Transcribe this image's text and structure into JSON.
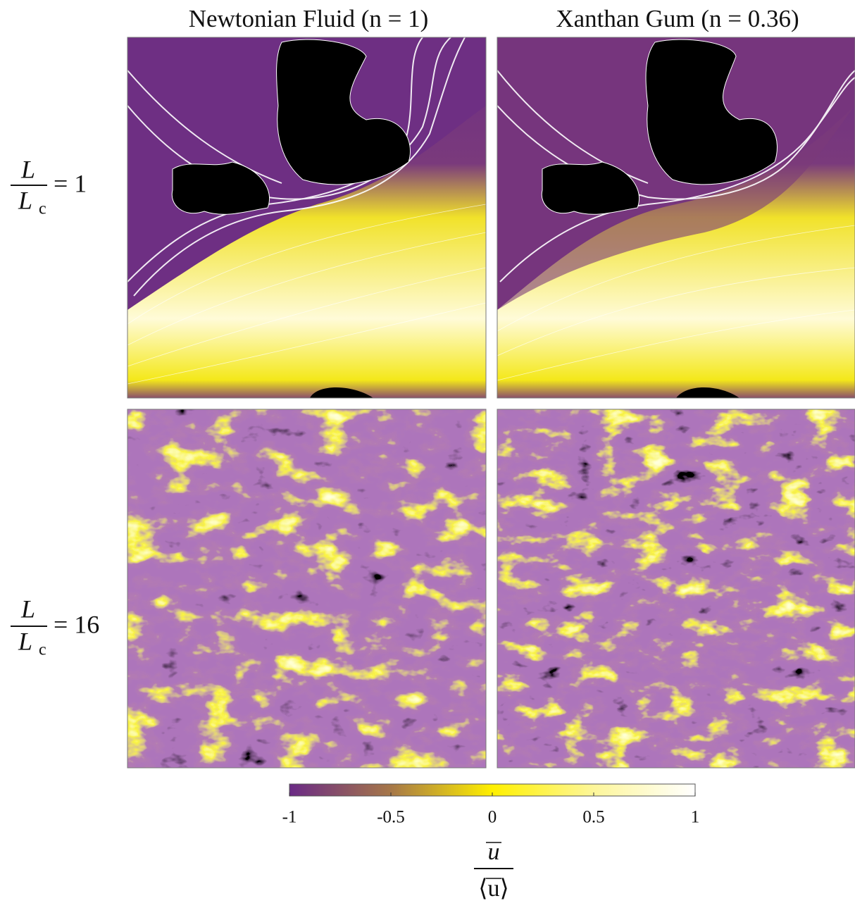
{
  "chart_data": {
    "type": "heatmap",
    "columns": [
      "Newtonian Fluid (n = 1)",
      "Xanthan Gum (n = 0.36)"
    ],
    "rows": [
      {
        "numerator": "L",
        "denominator": "L",
        "subscript": "c",
        "equals": "= 1"
      },
      {
        "numerator": "L",
        "denominator": "L",
        "subscript": "c",
        "equals": "= 16"
      }
    ],
    "colorbar": {
      "clim": [
        -1,
        1
      ],
      "ticks": [
        -1,
        -0.5,
        0,
        0.5,
        1
      ],
      "numerator": "u",
      "denominator": "⟨u⟩"
    }
  }
}
